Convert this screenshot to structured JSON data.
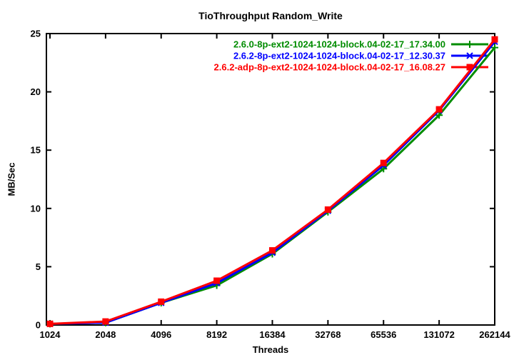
{
  "chart_data": {
    "type": "line",
    "title": "TioThroughput Random_Write",
    "xlabel": "Threads",
    "ylabel": "MB/Sec",
    "x_scale": "log2",
    "categories": [
      1024,
      2048,
      4096,
      8192,
      16384,
      32768,
      65536,
      131072,
      262144
    ],
    "xticklabels": [
      "1024",
      "2048",
      "4096",
      "8192",
      "16384",
      "32768",
      "65536",
      "131072",
      "262144"
    ],
    "yticks": [
      0,
      5,
      10,
      15,
      20,
      25
    ],
    "ylim": [
      0,
      25
    ],
    "grid": false,
    "legend_position": "top-right-inside",
    "colors": {
      "axis": "#000000",
      "background": "#ffffff"
    },
    "series": [
      {
        "name": "2.6.0-8p-ext2-1024-1024-block.04-02-17_17.34.00",
        "color": "#008c00",
        "marker": "plus",
        "values": [
          0.1,
          0.2,
          1.9,
          3.4,
          6.1,
          9.7,
          13.4,
          18.0,
          23.8
        ]
      },
      {
        "name": "2.6.2-8p-ext2-1024-1024-block.04-02-17_12.30.37",
        "color": "#0000ff",
        "marker": "cross",
        "values": [
          0.1,
          0.2,
          1.9,
          3.6,
          6.2,
          9.8,
          13.7,
          18.4,
          24.3
        ]
      },
      {
        "name": "2.6.2-adp-8p-ext2-1024-1024-block.04-02-17_16.08.27",
        "color": "#ff0000",
        "marker": "square",
        "values": [
          0.1,
          0.3,
          2.0,
          3.8,
          6.4,
          9.9,
          13.9,
          18.5,
          24.5
        ]
      }
    ]
  }
}
